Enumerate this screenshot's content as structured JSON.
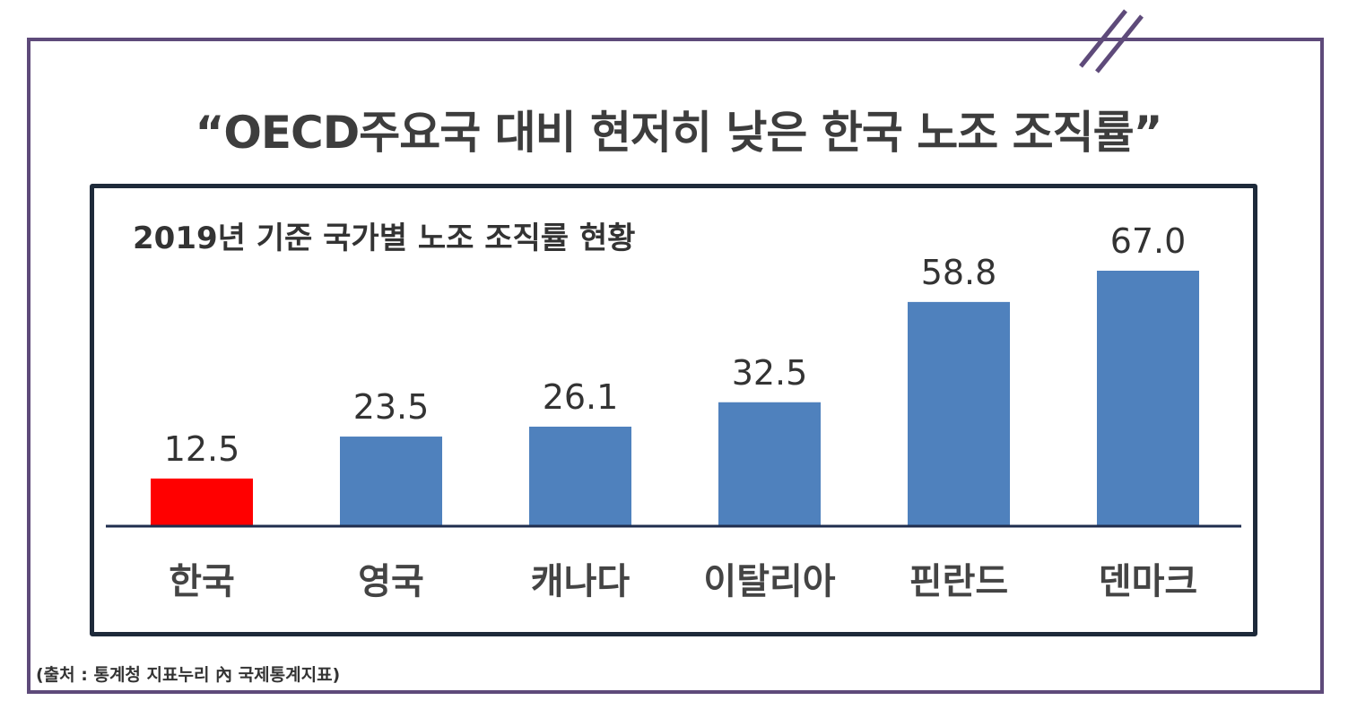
{
  "title": "“OECD주요국 대비 현저히 낮은 한국 노조 조직률”",
  "source": "(출처 : 통계청 지표누리 內 국제통계지표)",
  "colors": {
    "frame": "#5e4a7a",
    "highlight": "#ff0000",
    "bar": "#4f81bd",
    "axis": "#1f2d4d"
  },
  "chart_data": {
    "type": "bar",
    "title": "2019년 기준 국가별 노조 조직률 현황",
    "categories": [
      "한국",
      "영국",
      "캐나다",
      "이탈리아",
      "핀란드",
      "덴마크"
    ],
    "values": [
      12.5,
      23.5,
      26.1,
      32.5,
      58.8,
      67.0
    ],
    "labels": [
      "12.5",
      "23.5",
      "26.1",
      "32.5",
      "58.8",
      "67.0"
    ],
    "highlight": "한국",
    "ylim": [
      0,
      67.0
    ],
    "grid": false,
    "legend": "none"
  }
}
